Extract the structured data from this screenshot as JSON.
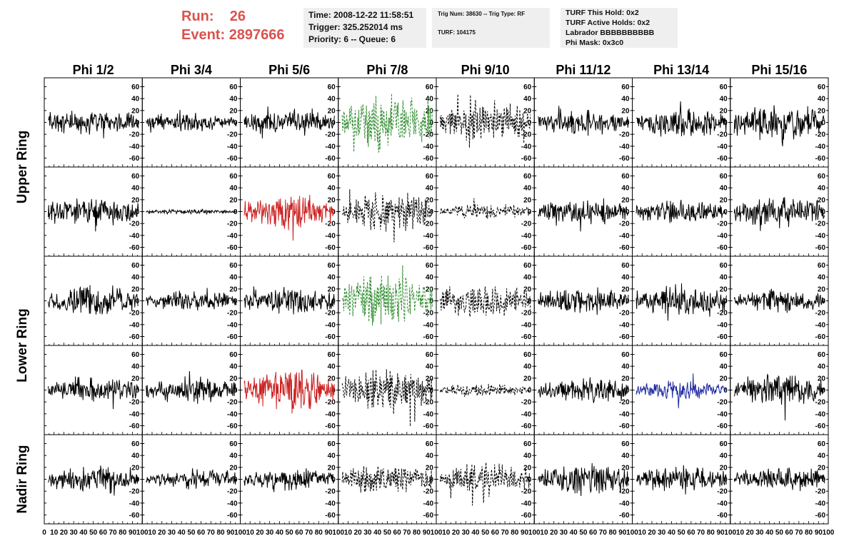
{
  "header": {
    "run_label": "Run:",
    "run_value": "26",
    "event_label": "Event:",
    "event_value": "2897666"
  },
  "info_panel": {
    "time": "Time: 2008-12-22 11:58:51",
    "trigger": "Trigger: 325.252014 ms",
    "priority": "Priority: 6 -- Queue: 6"
  },
  "trig_panel": {
    "trig": "Trig Num: 38630 -- Trig Type: RF",
    "turf": "TURF: 104175"
  },
  "turf_panel": {
    "this_hold": "TURF This Hold: 0x2",
    "active_holds": "TURF Active Holds: 0x2",
    "labrador": "Labrador BBBBBBBBBB",
    "phi_mask": "Phi Mask: 0x3c0"
  },
  "chart_data": {
    "type": "line",
    "columns": [
      "Phi 1/2",
      "Phi 3/4",
      "Phi 5/6",
      "Phi 7/8",
      "Phi 9/10",
      "Phi 11/12",
      "Phi 13/14",
      "Phi 15/16"
    ],
    "ring_labels": [
      "Upper Ring",
      "Lower Ring",
      "Nadir Ring"
    ],
    "ylim": [
      -75,
      75
    ],
    "y_ticks": [
      60,
      40,
      20,
      0,
      -20,
      -40,
      -60
    ],
    "xlim": [
      0,
      100
    ],
    "x_ticks": [
      0,
      10,
      20,
      30,
      40,
      50,
      60,
      70,
      80,
      90,
      100
    ],
    "colors": {
      "default": "#000000",
      "green": "#2e8b2e",
      "red": "#cc2222",
      "blue": "#1f2a9e"
    },
    "rows": [
      [
        {
          "style": "black",
          "amp": 16
        },
        {
          "style": "black",
          "amp": 11
        },
        {
          "style": "black",
          "amp": 15
        },
        {
          "style": "green-dash",
          "amp": 34
        },
        {
          "style": "black-dash",
          "amp": 26
        },
        {
          "style": "black",
          "amp": 15
        },
        {
          "style": "black",
          "amp": 19
        },
        {
          "style": "black",
          "amp": 22
        }
      ],
      [
        {
          "style": "black",
          "amp": 18
        },
        {
          "style": "black",
          "amp": 3
        },
        {
          "style": "red",
          "amp": 22
        },
        {
          "style": "black-dash",
          "amp": 24
        },
        {
          "style": "black-dash",
          "amp": 9
        },
        {
          "style": "black",
          "amp": 16
        },
        {
          "style": "black",
          "amp": 14
        },
        {
          "style": "black",
          "amp": 20
        }
      ],
      [
        {
          "style": "black",
          "amp": 20
        },
        {
          "style": "black",
          "amp": 12
        },
        {
          "style": "black",
          "amp": 17
        },
        {
          "style": "green-dash",
          "amp": 34
        },
        {
          "style": "black-dash",
          "amp": 20
        },
        {
          "style": "black",
          "amp": 16
        },
        {
          "style": "black",
          "amp": 20
        },
        {
          "style": "black",
          "amp": 14
        }
      ],
      [
        {
          "style": "black",
          "amp": 16
        },
        {
          "style": "black",
          "amp": 17
        },
        {
          "style": "red",
          "amp": 26
        },
        {
          "style": "black-dash",
          "amp": 26
        },
        {
          "style": "black-dash",
          "amp": 8
        },
        {
          "style": "black",
          "amp": 16
        },
        {
          "style": "blue",
          "amp": 12
        },
        {
          "style": "black",
          "amp": 20
        }
      ],
      [
        {
          "style": "black",
          "amp": 18
        },
        {
          "style": "black",
          "amp": 12
        },
        {
          "style": "black",
          "amp": 13
        },
        {
          "style": "black-dash",
          "amp": 18
        },
        {
          "style": "black-dash",
          "amp": 20
        },
        {
          "style": "black",
          "amp": 20
        },
        {
          "style": "black",
          "amp": 17
        },
        {
          "style": "black",
          "amp": 15
        }
      ]
    ]
  }
}
